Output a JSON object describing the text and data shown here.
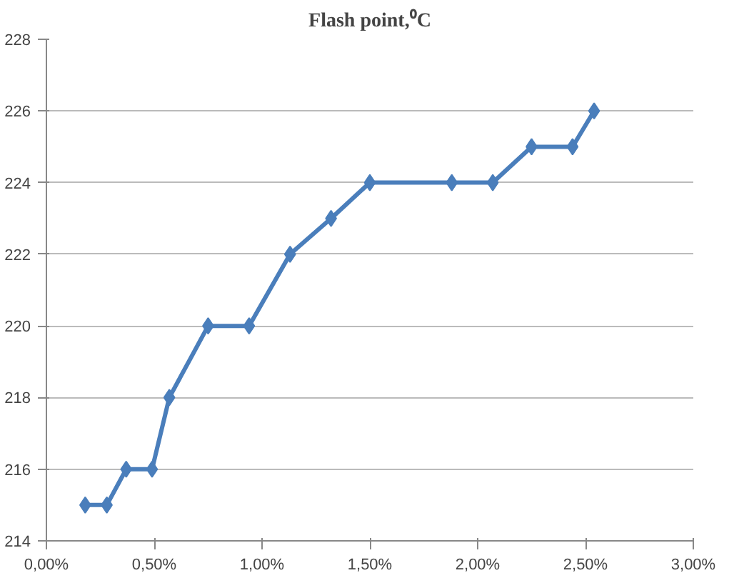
{
  "chart_data": {
    "type": "line",
    "title": "Flash point,⁰C",
    "x": [
      0.18,
      0.28,
      0.37,
      0.49,
      0.57,
      0.75,
      0.94,
      1.13,
      1.32,
      1.5,
      1.88,
      2.07,
      2.25,
      2.44,
      2.54
    ],
    "series": [
      {
        "color": "#4a7ebb",
        "values": [
          215,
          215,
          216,
          216,
          218,
          220,
          220,
          222,
          223,
          224,
          224,
          224,
          225,
          225,
          226
        ]
      }
    ],
    "xlim": [
      0,
      3
    ],
    "ylim": [
      214,
      228
    ],
    "xticks": [
      {
        "value": 0,
        "label": "0,00%"
      },
      {
        "value": 0.5,
        "label": "0,50%"
      },
      {
        "value": 1,
        "label": "1,00%"
      },
      {
        "value": 1.5,
        "label": "1,50%"
      },
      {
        "value": 2,
        "label": "2,00%"
      },
      {
        "value": 2.5,
        "label": "2,50%"
      },
      {
        "value": 3,
        "label": "3,00%"
      }
    ],
    "yticks": [
      214,
      216,
      218,
      220,
      222,
      224,
      226,
      228
    ],
    "grid": "y",
    "marker": "diamond",
    "line_style": "solid"
  }
}
